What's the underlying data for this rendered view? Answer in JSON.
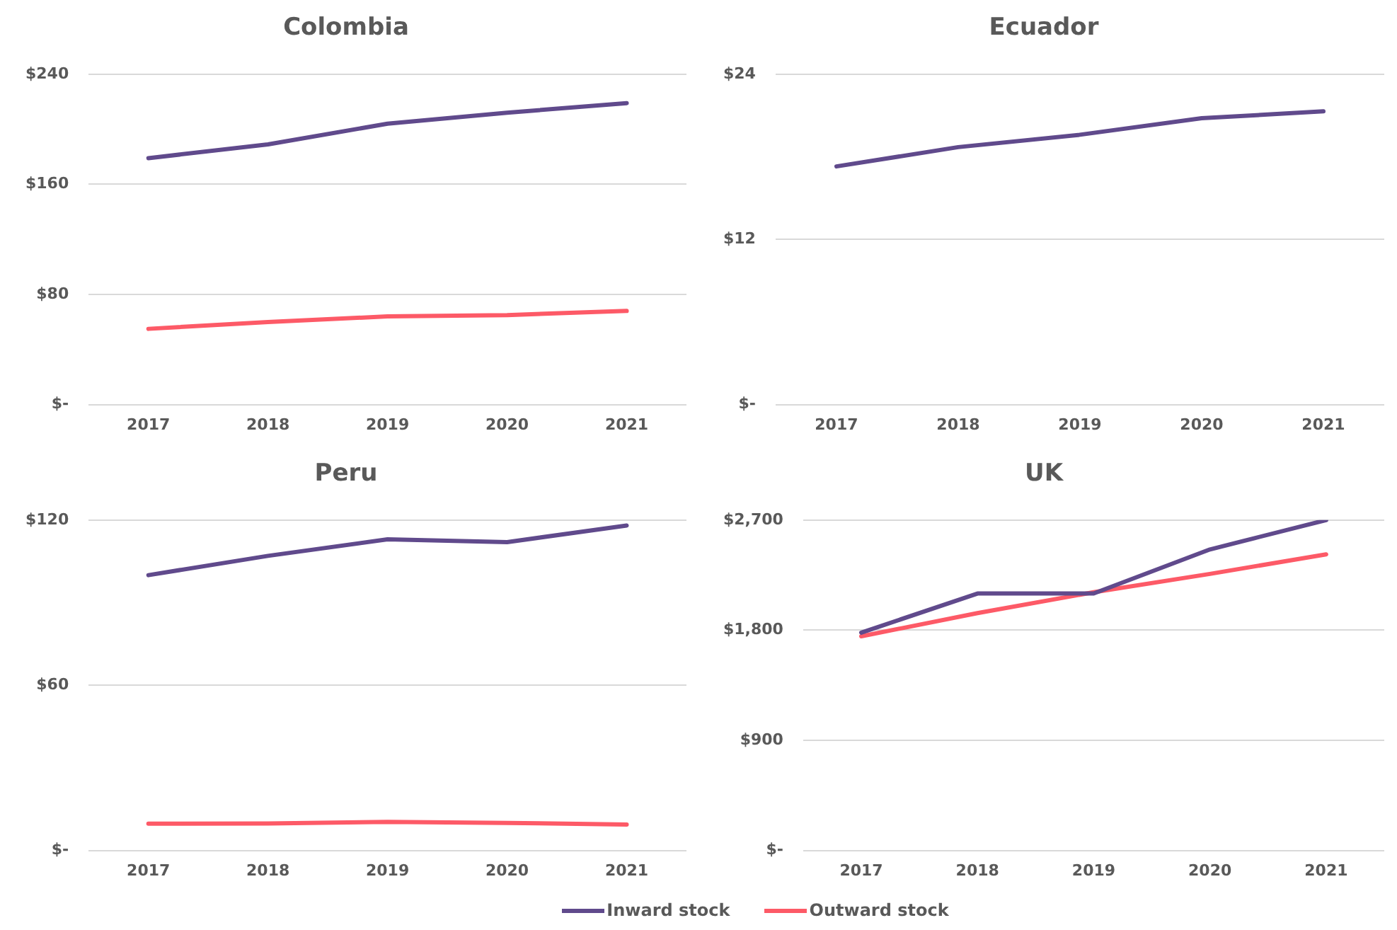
{
  "chart_data": [
    {
      "type": "line",
      "title": "Colombia",
      "categories": [
        "2017",
        "2018",
        "2019",
        "2020",
        "2021"
      ],
      "ylim": [
        0,
        240
      ],
      "yticks": [
        {
          "value": 0,
          "label": "$-"
        },
        {
          "value": 80,
          "label": "$80"
        },
        {
          "value": 160,
          "label": "$160"
        },
        {
          "value": 240,
          "label": "$240"
        }
      ],
      "grid": "y",
      "marker": "none",
      "series": [
        {
          "color": "#604a8c",
          "values": [
            179,
            189,
            204,
            212,
            219
          ]
        },
        {
          "color": "#fd5a67",
          "values": [
            55,
            60,
            64,
            65,
            68
          ]
        }
      ]
    },
    {
      "type": "line",
      "title": "Ecuador",
      "categories": [
        "2017",
        "2018",
        "2019",
        "2020",
        "2021"
      ],
      "ylim": [
        0,
        24
      ],
      "yticks": [
        {
          "value": 0,
          "label": "$-"
        },
        {
          "value": 12,
          "label": "$12"
        },
        {
          "value": 24,
          "label": "$24"
        }
      ],
      "grid": "y",
      "marker": "none",
      "series": [
        {
          "color": "#604a8c",
          "values": [
            17.3,
            18.7,
            19.6,
            20.8,
            21.3
          ]
        }
      ]
    },
    {
      "type": "line",
      "title": "Peru",
      "categories": [
        "2017",
        "2018",
        "2019",
        "2020",
        "2021"
      ],
      "ylim": [
        0,
        120
      ],
      "yticks": [
        {
          "value": 0,
          "label": "$-"
        },
        {
          "value": 60,
          "label": "$60"
        },
        {
          "value": 120,
          "label": "$120"
        }
      ],
      "grid": "y",
      "marker": "none",
      "series": [
        {
          "color": "#604a8c",
          "values": [
            100,
            107,
            113,
            112,
            118
          ]
        },
        {
          "color": "#fd5a67",
          "values": [
            9.7,
            9.8,
            10.4,
            10,
            9.4
          ]
        }
      ]
    },
    {
      "type": "line",
      "title": "UK",
      "categories": [
        "2017",
        "2018",
        "2019",
        "2020",
        "2021"
      ],
      "ylim": [
        0,
        2700
      ],
      "yticks": [
        {
          "value": 0,
          "label": "$-"
        },
        {
          "value": 900,
          "label": "$900"
        },
        {
          "value": 1800,
          "label": "$1,800"
        },
        {
          "value": 2700,
          "label": "$2,700"
        }
      ],
      "grid": "y",
      "legend": "bottom",
      "marker": "none",
      "series": [
        {
          "name": "Inward stock",
          "color": "#604a8c",
          "values": [
            1780,
            2100,
            2100,
            2460,
            2700
          ]
        },
        {
          "name": "Outward stock",
          "color": "#fd5a67",
          "values": [
            1750,
            1940,
            2110,
            2260,
            2420
          ]
        }
      ]
    }
  ]
}
